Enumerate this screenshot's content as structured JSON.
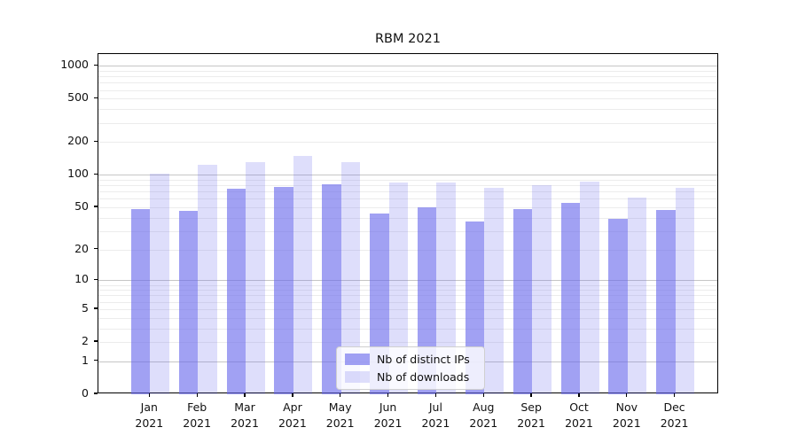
{
  "title": "RBM 2021",
  "legend": {
    "items": [
      {
        "label": "Nb of distinct IPs",
        "color": "rgba(103,103,235,0.62)"
      },
      {
        "label": "Nb of downloads",
        "color": "rgba(103,103,235,0.22)"
      }
    ]
  },
  "chart_data": {
    "type": "bar",
    "title": "RBM 2021",
    "categories": [
      "Jan\n2021",
      "Feb\n2021",
      "Mar\n2021",
      "Apr\n2021",
      "May\n2021",
      "Jun\n2021",
      "Jul\n2021",
      "Aug\n2021",
      "Sep\n2021",
      "Oct\n2021",
      "Nov\n2021",
      "Dec\n2021"
    ],
    "series": [
      {
        "name": "Nb of distinct IPs",
        "color": "rgba(103,103,235,0.62)",
        "values": [
          48,
          46,
          74,
          78,
          82,
          44,
          50,
          37,
          48,
          55,
          39,
          47
        ]
      },
      {
        "name": "Nb of downloads",
        "color": "rgba(103,103,235,0.22)",
        "values": [
          102,
          124,
          130,
          150,
          132,
          85,
          85,
          76,
          81,
          87,
          62,
          76
        ]
      }
    ],
    "xlabel": "",
    "ylabel": "",
    "yscale": "symlog (log10(1+v))",
    "yticks": [
      0,
      1,
      2,
      5,
      10,
      20,
      50,
      100,
      200,
      500,
      1000
    ],
    "ylim": [
      0,
      1280
    ],
    "grid": "horizontal, minor light + major darker at powers of 10",
    "legend_position": "lower center",
    "colors": {
      "bar_dark": "rgba(103,103,235,0.62)",
      "bar_light": "rgba(103,103,235,0.22)",
      "grid_minor": "#ececec",
      "grid_major": "#c6c6c6",
      "axis": "#000000"
    }
  }
}
